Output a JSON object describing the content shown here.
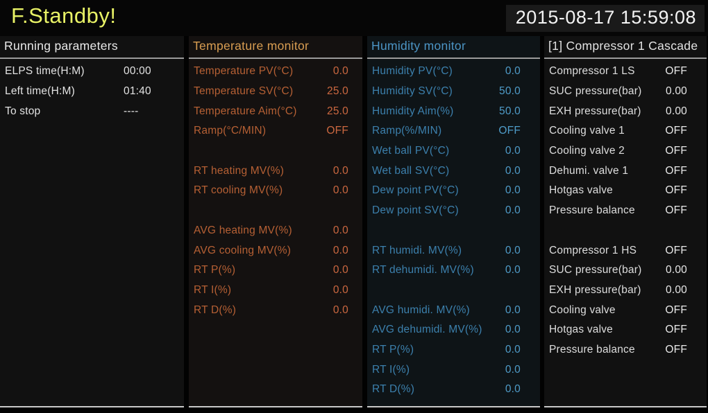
{
  "header": {
    "status": "F.Standby!",
    "datetime": "2015-08-17 15:59:08"
  },
  "colors": {
    "status_accent": "#e8f266",
    "temperature_accent": "#cc6840",
    "humidity_accent": "#4f9cc9",
    "neutral_text": "#e3e3e3"
  },
  "panels": [
    {
      "title": "Running parameters",
      "rows": [
        {
          "label": "ELPS time(H:M)",
          "value": "00:00"
        },
        {
          "label": "Left time(H:M)",
          "value": "01:40"
        },
        {
          "label": "To stop",
          "value": "----"
        }
      ]
    },
    {
      "title": "Temperature monitor",
      "rows": [
        {
          "label": "Temperature PV(°C)",
          "value": "0.0"
        },
        {
          "label": "Temperature SV(°C)",
          "value": "25.0"
        },
        {
          "label": "Temperature Aim(°C)",
          "value": "25.0"
        },
        {
          "label": "Ramp(°C/MIN)",
          "value": "OFF"
        },
        {
          "spacer": true
        },
        {
          "label": "RT heating MV(%)",
          "value": "0.0"
        },
        {
          "label": "RT cooling MV(%)",
          "value": "0.0"
        },
        {
          "spacer": true
        },
        {
          "label": "AVG heating MV(%)",
          "value": "0.0"
        },
        {
          "label": "AVG cooling MV(%)",
          "value": "0.0"
        },
        {
          "label": "RT P(%)",
          "value": "0.0"
        },
        {
          "label": "RT I(%)",
          "value": "0.0"
        },
        {
          "label": "RT D(%)",
          "value": "0.0"
        }
      ]
    },
    {
      "title": "Humidity monitor",
      "rows": [
        {
          "label": "Humidity PV(°C)",
          "value": "0.0"
        },
        {
          "label": "Humidity SV(°C)",
          "value": "50.0"
        },
        {
          "label": "Humidity Aim(%)",
          "value": "50.0"
        },
        {
          "label": "Ramp(%/MIN)",
          "value": "OFF"
        },
        {
          "label": "Wet ball PV(°C)",
          "value": "0.0"
        },
        {
          "label": "Wet ball SV(°C)",
          "value": "0.0"
        },
        {
          "label": "Dew point PV(°C)",
          "value": "0.0"
        },
        {
          "label": "Dew point SV(°C)",
          "value": "0.0"
        },
        {
          "spacer": true
        },
        {
          "label": "RT humidi. MV(%)",
          "value": "0.0"
        },
        {
          "label": "RT dehumidi. MV(%)",
          "value": "0.0"
        },
        {
          "spacer": true
        },
        {
          "label": "AVG humidi. MV(%)",
          "value": "0.0"
        },
        {
          "label": "AVG dehumidi. MV(%)",
          "value": "0.0"
        },
        {
          "label": "RT P(%)",
          "value": "0.0"
        },
        {
          "label": "RT I(%)",
          "value": "0.0"
        },
        {
          "label": "RT D(%)",
          "value": "0.0"
        }
      ]
    },
    {
      "title": "[1] Compressor 1 Cascade",
      "rows": [
        {
          "label": "Compressor 1 LS",
          "value": "OFF"
        },
        {
          "label": "SUC pressure(bar)",
          "value": "0.00"
        },
        {
          "label": "EXH pressure(bar)",
          "value": "0.00"
        },
        {
          "label": "Cooling valve 1",
          "value": "OFF"
        },
        {
          "label": "Cooling valve 2",
          "value": "OFF"
        },
        {
          "label": "Dehumi. valve 1",
          "value": "OFF"
        },
        {
          "label": "Hotgas valve",
          "value": "OFF"
        },
        {
          "label": "Pressure balance",
          "value": "OFF"
        },
        {
          "spacer": true
        },
        {
          "label": "Compressor 1 HS",
          "value": "OFF"
        },
        {
          "label": "SUC pressure(bar)",
          "value": "0.00"
        },
        {
          "label": "EXH pressure(bar)",
          "value": "0.00"
        },
        {
          "label": "Cooling valve",
          "value": "OFF"
        },
        {
          "label": "Hotgas valve",
          "value": "OFF"
        },
        {
          "label": "Pressure balance",
          "value": "OFF"
        }
      ]
    }
  ]
}
